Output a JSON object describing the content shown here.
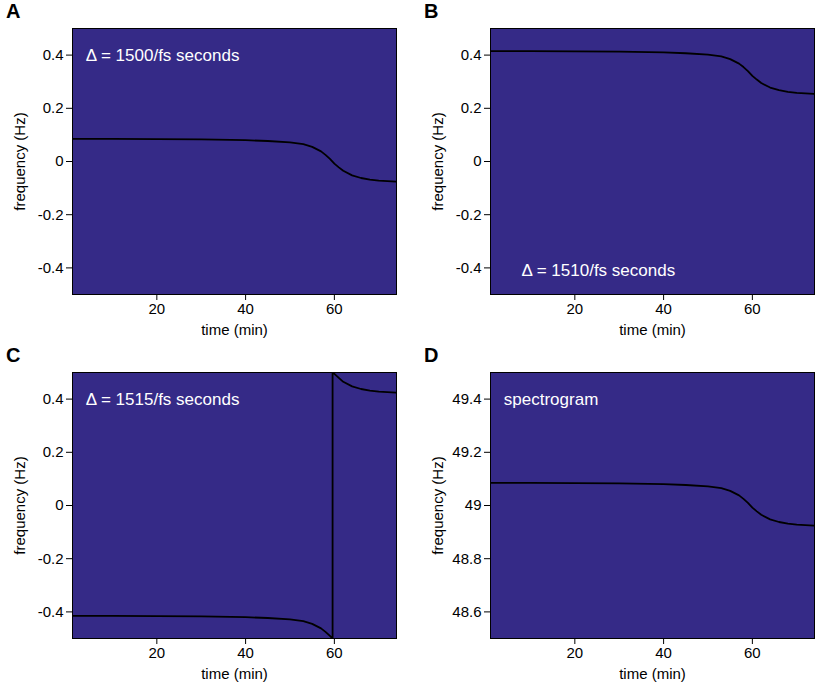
{
  "chart_data": [
    {
      "panel": "A",
      "type": "line",
      "x_label": "time (min)",
      "y_label": "frequency (Hz)",
      "xlim": [
        1,
        74
      ],
      "ylim": [
        -0.5,
        0.5
      ],
      "xticks": [
        20,
        40,
        60
      ],
      "yticks": [
        -0.4,
        -0.2,
        0,
        0.2,
        0.4
      ],
      "color": "black",
      "x": [
        1,
        10,
        20,
        30,
        40,
        45,
        50,
        53,
        55,
        57,
        58,
        59,
        60,
        61,
        62,
        64,
        66,
        68,
        70,
        74
      ],
      "values": [
        0.085,
        0.085,
        0.084,
        0.083,
        0.08,
        0.077,
        0.072,
        0.065,
        0.055,
        0.038,
        0.025,
        0.01,
        -0.008,
        -0.022,
        -0.035,
        -0.052,
        -0.062,
        -0.068,
        -0.072,
        -0.076
      ],
      "annotations": [
        {
          "text": "Δ = 1500/fs seconds",
          "x": 4,
          "y": 0.4
        }
      ]
    },
    {
      "panel": "B",
      "type": "line",
      "x_label": "time (min)",
      "y_label": "frequency (Hz)",
      "xlim": [
        1,
        74
      ],
      "ylim": [
        -0.5,
        0.5
      ],
      "xticks": [
        20,
        40,
        60
      ],
      "yticks": [
        -0.4,
        -0.2,
        0,
        0.2,
        0.4
      ],
      "color": "black",
      "x": [
        1,
        10,
        20,
        30,
        40,
        45,
        50,
        53,
        55,
        57,
        58,
        59,
        60,
        61,
        62,
        64,
        66,
        68,
        70,
        74
      ],
      "values": [
        0.415,
        0.415,
        0.414,
        0.413,
        0.41,
        0.407,
        0.402,
        0.395,
        0.385,
        0.368,
        0.355,
        0.34,
        0.322,
        0.308,
        0.295,
        0.278,
        0.268,
        0.262,
        0.258,
        0.254
      ],
      "annotations": [
        {
          "text": "Δ = 1510/fs seconds",
          "x": 8,
          "y": -0.41
        }
      ]
    },
    {
      "panel": "C",
      "type": "line",
      "x_label": "time (min)",
      "y_label": "frequency (Hz)",
      "xlim": [
        1,
        74
      ],
      "ylim": [
        -0.5,
        0.5
      ],
      "xticks": [
        20,
        40,
        60
      ],
      "yticks": [
        -0.4,
        -0.2,
        0,
        0.2,
        0.4
      ],
      "color": "black",
      "x": [
        1,
        10,
        20,
        30,
        40,
        45,
        50,
        53,
        55,
        57,
        58,
        59,
        59.6,
        59.6,
        60,
        61,
        62,
        64,
        66,
        68,
        70,
        74
      ],
      "values": [
        -0.415,
        -0.415,
        -0.416,
        -0.417,
        -0.42,
        -0.423,
        -0.428,
        -0.435,
        -0.445,
        -0.462,
        -0.475,
        -0.49,
        -0.5,
        0.5,
        0.495,
        0.48,
        0.465,
        0.448,
        0.438,
        0.432,
        0.428,
        0.424
      ],
      "annotations": [
        {
          "text": "Δ = 1515/fs seconds",
          "x": 4,
          "y": 0.4
        }
      ]
    },
    {
      "panel": "D",
      "type": "line",
      "x_label": "time (min)",
      "y_label": "frequency (Hz)",
      "xlim": [
        1,
        74
      ],
      "ylim": [
        48.5,
        49.5
      ],
      "xticks": [
        20,
        40,
        60
      ],
      "yticks": [
        48.6,
        48.8,
        49,
        49.2,
        49.4
      ],
      "color": "black",
      "x": [
        1,
        10,
        20,
        30,
        40,
        45,
        50,
        53,
        55,
        57,
        58,
        59,
        60,
        61,
        62,
        64,
        66,
        68,
        70,
        74
      ],
      "values": [
        49.085,
        49.085,
        49.084,
        49.083,
        49.08,
        49.077,
        49.072,
        49.065,
        49.055,
        49.038,
        49.025,
        49.01,
        48.992,
        48.978,
        48.965,
        48.948,
        48.938,
        48.932,
        48.928,
        48.924
      ],
      "annotations": [
        {
          "text": "spectrogram",
          "x": 4,
          "y": 49.4
        }
      ]
    }
  ]
}
